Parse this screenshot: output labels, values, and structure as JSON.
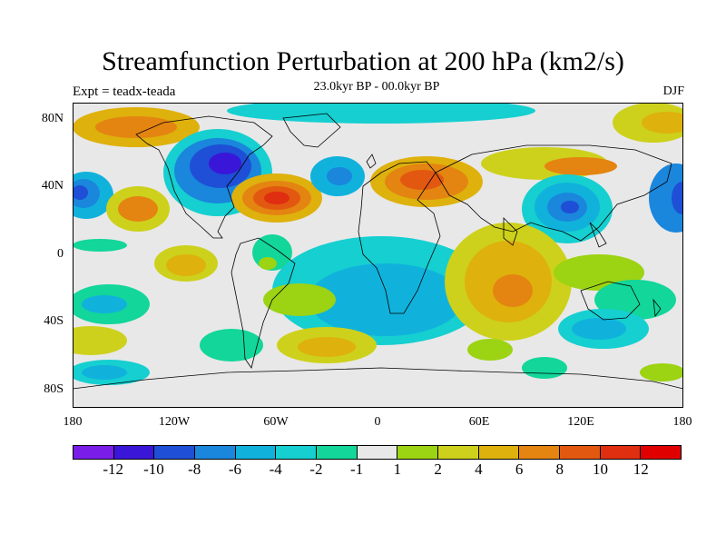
{
  "header": {
    "title": "Streamfunction Perturbation at 200 hPa (km2/s)",
    "left_label": "Expt = teadx-teada",
    "center_label": "23.0kyr BP - 00.0kyr BP",
    "right_label": "DJF"
  },
  "axes": {
    "y_ticks": [
      "80N",
      "40N",
      "0",
      "40S",
      "80S"
    ],
    "x_ticks": [
      "180",
      "120W",
      "60W",
      "0",
      "60E",
      "120E",
      "180"
    ]
  },
  "colorbar": {
    "labels": [
      "-12",
      "-10",
      "-8",
      "-6",
      "-4",
      "-2",
      "-1",
      "1",
      "2",
      "4",
      "6",
      "8",
      "10",
      "12"
    ],
    "colors": [
      "#7a1de8",
      "#3a16d8",
      "#1e4fd6",
      "#1a86dc",
      "#10b2dc",
      "#16cfd0",
      "#12d69a",
      "#e8e8e8",
      "#9cd312",
      "#cdd11b",
      "#deb10d",
      "#e48411",
      "#e25810",
      "#e02e10",
      "#e00000"
    ]
  },
  "colors": {
    "land_outline": "#000000",
    "neutral": "#e8e8e8"
  }
}
